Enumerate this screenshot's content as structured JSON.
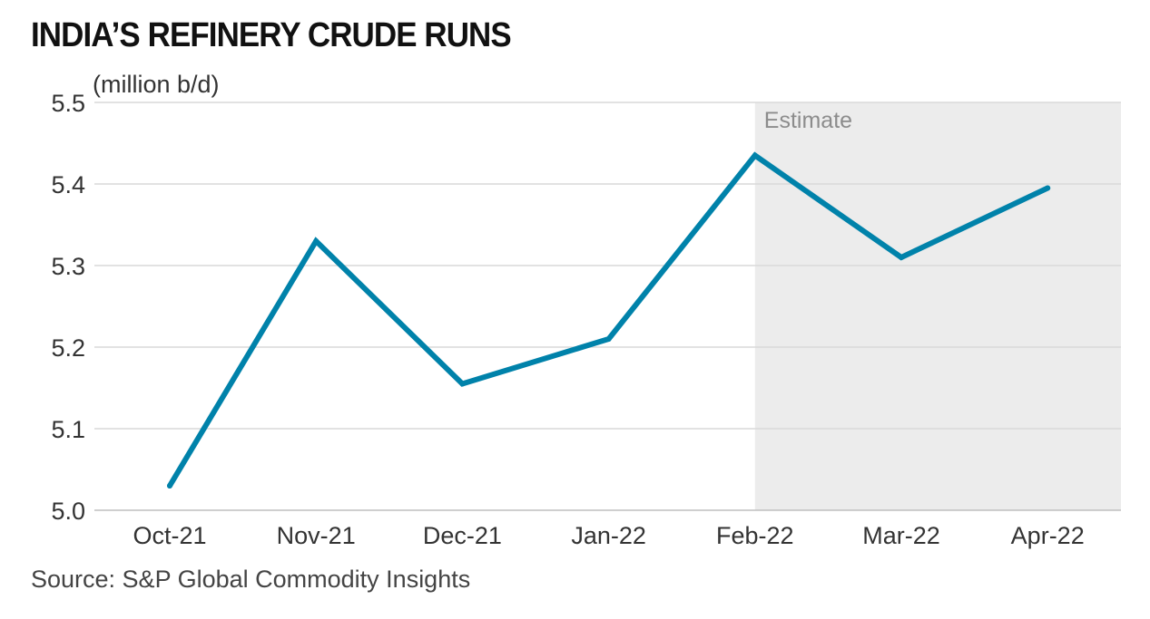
{
  "chart_data": {
    "type": "line",
    "title": "INDIA’S REFINERY CRUDE RUNS",
    "unit_label": "(million b/d)",
    "source": "Source: S&P Global Commodity Insights",
    "categories": [
      "Oct-21",
      "Nov-21",
      "Dec-21",
      "Jan-22",
      "Feb-22",
      "Mar-22",
      "Apr-22"
    ],
    "series": [
      {
        "values": [
          5.03,
          5.33,
          5.155,
          5.21,
          5.435,
          5.31,
          5.395
        ]
      }
    ],
    "ylim": [
      5.0,
      5.5
    ],
    "yticks": [
      "5.0",
      "5.1",
      "5.2",
      "5.3",
      "5.4",
      "5.5"
    ],
    "ytick_values": [
      5.0,
      5.1,
      5.2,
      5.3,
      5.4,
      5.5
    ],
    "grid": true,
    "estimate_region": {
      "label": "Estimate",
      "from": "Feb-22",
      "to": "Apr-22"
    },
    "colors": {
      "line": "#0082aa",
      "estimate_shade": "#ececec",
      "grid": "#d9d9d9"
    }
  }
}
